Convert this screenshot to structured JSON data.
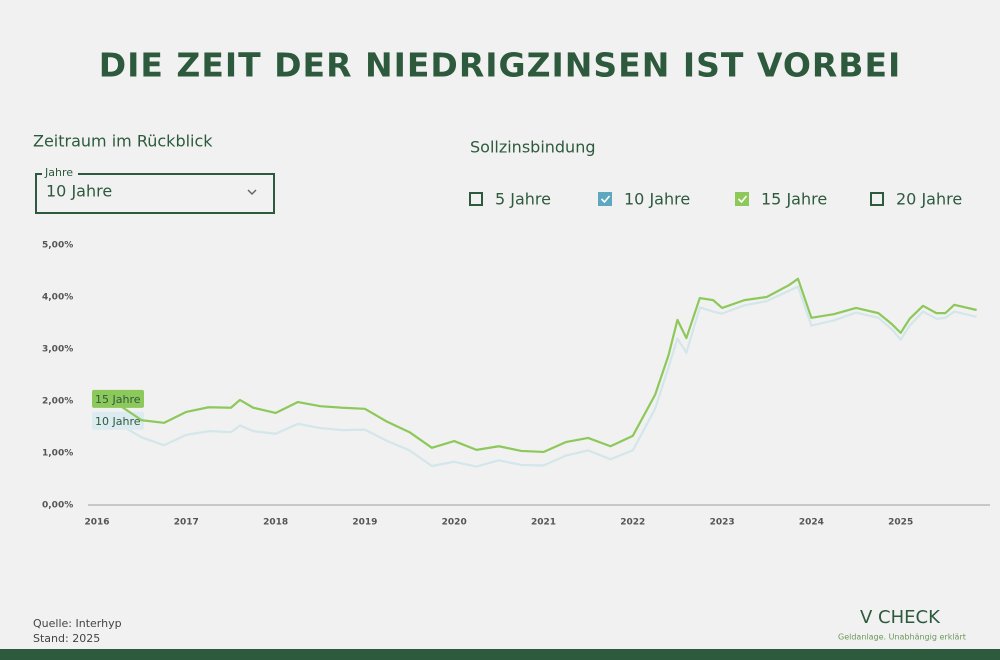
{
  "header": {
    "title": "DIE ZEIT DER NIEDRIGZINSEN IST VORBEI"
  },
  "controls": {
    "period_label": "Zeitraum im Rückblick",
    "select_legend": "Jahre",
    "select_value": "10 Jahre",
    "binding_label": "Sollzinsbindung",
    "options": [
      {
        "label": "5 Jahre",
        "checked": false,
        "color": "#2d5a3d"
      },
      {
        "label": "10 Jahre",
        "checked": true,
        "color": "#5ea7c0"
      },
      {
        "label": "15 Jahre",
        "checked": true,
        "color": "#8dc85a"
      },
      {
        "label": "20 Jahre",
        "checked": false,
        "color": "#2d5a3d"
      }
    ]
  },
  "chart_data": {
    "type": "line",
    "x": [
      2016,
      2016.25,
      2016.5,
      2016.75,
      2017,
      2017.25,
      2017.5,
      2017.6,
      2017.75,
      2018,
      2018.25,
      2018.5,
      2018.75,
      2019,
      2019.25,
      2019.5,
      2019.75,
      2020,
      2020.25,
      2020.5,
      2020.75,
      2021,
      2021.25,
      2021.5,
      2021.75,
      2022,
      2022.25,
      2022.4,
      2022.5,
      2022.6,
      2022.75,
      2022.9,
      2023,
      2023.25,
      2023.5,
      2023.75,
      2023.85,
      2024,
      2024.25,
      2024.5,
      2024.75,
      2024.9,
      2025,
      2025.1,
      2025.25,
      2025.4,
      2025.5,
      2025.6,
      2025.85
    ],
    "series": [
      {
        "name": "10 Jahre",
        "color": "#d3e6ea",
        "label_color": "#dcebef",
        "values": [
          1.62,
          1.55,
          1.3,
          1.15,
          1.35,
          1.42,
          1.4,
          1.53,
          1.42,
          1.37,
          1.56,
          1.48,
          1.44,
          1.45,
          1.23,
          1.05,
          0.75,
          0.83,
          0.74,
          0.86,
          0.77,
          0.76,
          0.95,
          1.05,
          0.88,
          1.05,
          1.85,
          2.65,
          3.2,
          2.93,
          3.8,
          3.72,
          3.68,
          3.84,
          3.92,
          4.12,
          4.2,
          3.45,
          3.55,
          3.7,
          3.6,
          3.38,
          3.18,
          3.45,
          3.72,
          3.58,
          3.6,
          3.72,
          3.62
        ]
      },
      {
        "name": "15 Jahre",
        "color": "#8dc85a",
        "label_color": "#8dc85a",
        "values": [
          2.04,
          1.92,
          1.63,
          1.58,
          1.79,
          1.88,
          1.87,
          2.02,
          1.87,
          1.77,
          1.98,
          1.9,
          1.87,
          1.85,
          1.6,
          1.4,
          1.1,
          1.23,
          1.06,
          1.13,
          1.04,
          1.02,
          1.21,
          1.29,
          1.13,
          1.33,
          2.12,
          2.88,
          3.56,
          3.21,
          3.98,
          3.94,
          3.79,
          3.94,
          4.0,
          4.23,
          4.35,
          3.6,
          3.67,
          3.79,
          3.69,
          3.48,
          3.31,
          3.58,
          3.83,
          3.69,
          3.69,
          3.85,
          3.75
        ]
      }
    ],
    "xlim": [
      2016,
      2026
    ],
    "xticks": [
      2016,
      2017,
      2018,
      2019,
      2020,
      2021,
      2022,
      2023,
      2024,
      2025
    ],
    "ylim": [
      0,
      5
    ],
    "yticks": [
      {
        "value": 0,
        "label": "0,00%"
      },
      {
        "value": 1,
        "label": "1,00%"
      },
      {
        "value": 2,
        "label": "2,00%"
      },
      {
        "value": 3,
        "label": "3,00%"
      },
      {
        "value": 4,
        "label": "4,00%"
      },
      {
        "value": 5,
        "label": "5,00%"
      }
    ],
    "grid": false
  },
  "footer": {
    "source": "Quelle: Interhyp",
    "date": "Stand: 2025",
    "logo_name": "V CHECK",
    "logo_tagline": "Geldanlage. Unabhängig erklärt"
  }
}
